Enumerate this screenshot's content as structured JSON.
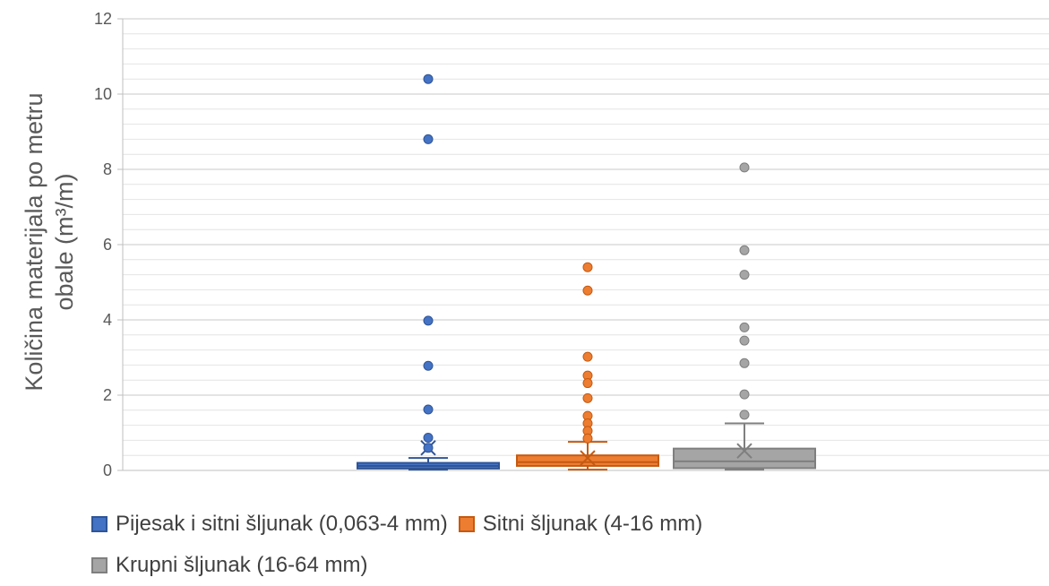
{
  "chart_data": {
    "type": "boxplot",
    "ylabel_line1": "Količina materijala po metru",
    "ylabel_line2": "obale (m³/m)",
    "ylim": [
      0,
      12
    ],
    "ytick_step": 2,
    "minor_step": 0.4,
    "grid": true,
    "legend_position": "bottom",
    "series": [
      {
        "name": "Pijesak i sitni šljunak (0,063-4 mm)",
        "color": "#4472c4",
        "border": "#2f5597",
        "min": 0.02,
        "q1": 0.05,
        "median": 0.12,
        "q3": 0.2,
        "max": 0.33,
        "mean": 0.6,
        "outliers": [
          10.4,
          8.8,
          3.98,
          2.78,
          1.62,
          0.87,
          0.6
        ]
      },
      {
        "name": "Sitni šljunak (4-16 mm)",
        "color": "#ed7d31",
        "border": "#c55a11",
        "min": 0.02,
        "q1": 0.12,
        "median": 0.22,
        "q3": 0.4,
        "max": 0.76,
        "mean": 0.33,
        "outliers": [
          5.4,
          4.78,
          3.02,
          2.52,
          2.32,
          1.92,
          1.45,
          1.25,
          1.05,
          0.85
        ]
      },
      {
        "name": "Krupni šljunak (16-64 mm)",
        "color": "#a5a5a5",
        "border": "#7f7f7f",
        "min": 0.02,
        "q1": 0.06,
        "median": 0.24,
        "q3": 0.58,
        "max": 1.25,
        "mean": 0.52,
        "outliers": [
          8.05,
          5.85,
          5.2,
          3.8,
          3.45,
          2.85,
          2.02,
          1.48
        ]
      }
    ]
  }
}
